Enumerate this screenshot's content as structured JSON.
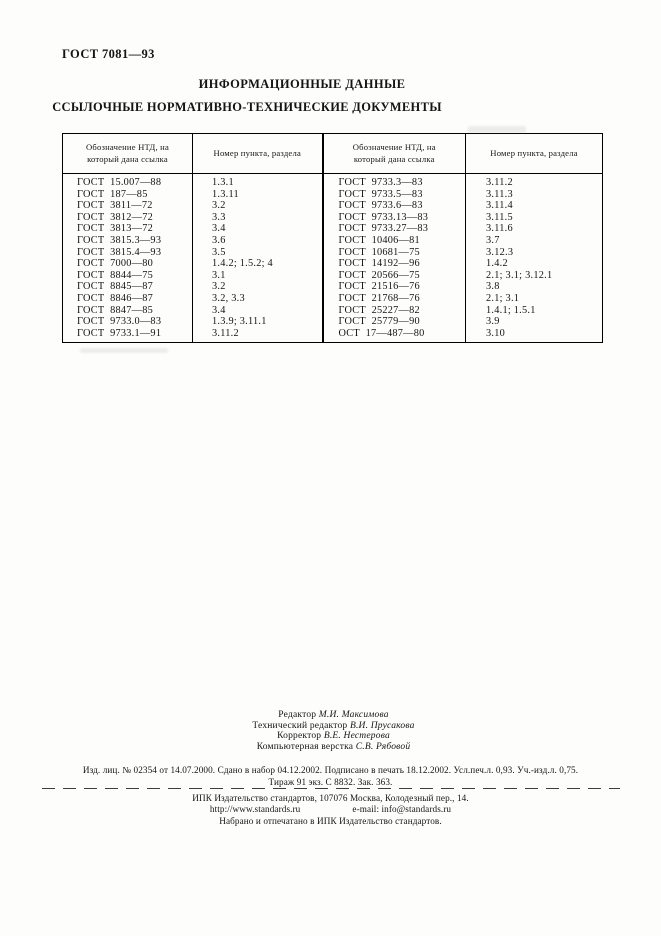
{
  "page": {
    "standard_code": "ГОСТ 7081—93",
    "title": "ИНФОРМАЦИОННЫЕ ДАННЫЕ",
    "subtitle": "ССЫЛОЧНЫЕ НОРМАТИВНО-ТЕХНИЧЕСКИЕ ДОКУМЕНТЫ"
  },
  "table": {
    "col_headers": [
      "Обозначение НТД, на который дана ссылка",
      "Номер пункта, раздела",
      "Обозначение НТД, на который дана ссылка",
      "Номер пункта, раздела"
    ],
    "rows": [
      [
        "ГОСТ  15.007—88",
        "1.3.1",
        "ГОСТ  9733.3—83",
        "3.11.2"
      ],
      [
        "ГОСТ  187—85",
        "1.3.11",
        "ГОСТ  9733.5—83",
        "3.11.3"
      ],
      [
        "ГОСТ  3811—72",
        "3.2",
        "ГОСТ  9733.6—83",
        "3.11.4"
      ],
      [
        "ГОСТ  3812—72",
        "3.3",
        "ГОСТ  9733.13—83",
        "3.11.5"
      ],
      [
        "ГОСТ  3813—72",
        "3.4",
        "ГОСТ  9733.27—83",
        "3.11.6"
      ],
      [
        "ГОСТ  3815.3—93",
        "3.6",
        "ГОСТ  10406—81",
        "3.7"
      ],
      [
        "ГОСТ  3815.4—93",
        "3.5",
        "ГОСТ  10681—75",
        "3.12.3"
      ],
      [
        "ГОСТ  7000—80",
        "1.4.2; 1.5.2; 4",
        "ГОСТ  14192—96",
        "1.4.2"
      ],
      [
        "ГОСТ  8844—75",
        "3.1",
        "ГОСТ  20566—75",
        "2.1; 3.1; 3.12.1"
      ],
      [
        "ГОСТ  8845—87",
        "3.2",
        "ГОСТ  21516—76",
        "3.8"
      ],
      [
        "ГОСТ  8846—87",
        "3.2, 3.3",
        "ГОСТ  21768—76",
        "2.1; 3.1"
      ],
      [
        "ГОСТ  8847—85",
        "3.4",
        "ГОСТ  25227—82",
        "1.4.1; 1.5.1"
      ],
      [
        "ГОСТ  9733.0—83",
        "1.3.9; 3.11.1",
        "ГОСТ  25779—90",
        "3.9"
      ],
      [
        "ГОСТ  9733.1—91",
        "3.11.2",
        "ОСТ  17—487—80",
        "3.10"
      ]
    ]
  },
  "credits": [
    {
      "role": "Редактор",
      "name": "М.И. Максимова"
    },
    {
      "role": "Технический редактор",
      "name": "В.И. Прусакова"
    },
    {
      "role": "Корректор",
      "name": "В.Е. Нестерова"
    },
    {
      "role": "Компьютерная верстка",
      "name": "С.В. Рябовой"
    }
  ],
  "imprint": {
    "line1": "Изд. лиц. № 02354 от 14.07.2000. Сдано в набор 04.12.2002. Подписано в печать 18.12.2002. Усл.печ.л. 0,93. Уч.-изд.л. 0,75.",
    "line2": "Тираж 91 экз. С 8832. Зак. 363."
  },
  "publisher": {
    "address": "ИПК Издательство стандартов, 107076 Москва, Колодезный пер., 14.",
    "website": "http://www.standards.ru",
    "email": "e-mail: info@standards.ru",
    "printed_note": "Набрано и отпечатано в ИПК Издательство стандартов."
  }
}
